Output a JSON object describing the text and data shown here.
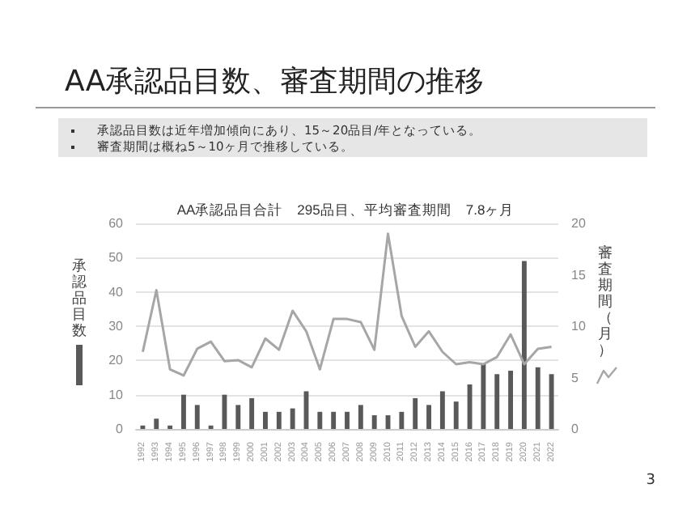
{
  "chart_data": {
    "type": "bar",
    "title": "AA承認品目数、審査期間の推移",
    "subtitle": "AA承認品目合計　295品目、平均審査期間　7.8ヶ月",
    "annotations": [
      "承認品目数は近年増加傾向にあり、15～20品目/年となっている。",
      "審査期間は概ね5～10ヶ月で推移している。",
      "3"
    ],
    "categories": [
      "1992",
      "1993",
      "1994",
      "1995",
      "1996",
      "1997",
      "1998",
      "1999",
      "2000",
      "2001",
      "2002",
      "2003",
      "2004",
      "2005",
      "2006",
      "2007",
      "2008",
      "2009",
      "2010",
      "2011",
      "2012",
      "2013",
      "2014",
      "2015",
      "2016",
      "2017",
      "2018",
      "2019",
      "2020",
      "2021",
      "2022"
    ],
    "series": [
      {
        "color": "#595959",
        "values": [
          1,
          3,
          1,
          10,
          7,
          1,
          10,
          7,
          9,
          5,
          5,
          6,
          11,
          5,
          5,
          5,
          7,
          4,
          4,
          5,
          9,
          7,
          11,
          8,
          13,
          19,
          16,
          17,
          49,
          18,
          16
        ]
      },
      {
        "type": "line",
        "axis": "y2",
        "color": "#a6a6a6",
        "values": [
          7.5,
          13.5,
          5.8,
          5.2,
          7.8,
          8.5,
          6.6,
          6.7,
          6.0,
          8.8,
          7.7,
          11.5,
          9.5,
          5.8,
          10.7,
          10.7,
          10.4,
          7.7,
          19,
          11,
          8,
          9.5,
          7.5,
          6.3,
          6.5,
          6.3,
          7,
          9.2,
          6.3,
          7.8,
          8
        ]
      }
    ],
    "ylabel": "承認品目数",
    "y2label": "審査期間（月）",
    "ylim": [
      0,
      60
    ],
    "yticks": [
      0,
      10,
      20,
      30,
      40,
      50,
      60
    ],
    "y2lim": [
      0,
      20
    ],
    "y2ticks": [
      0,
      5,
      10,
      15,
      20
    ],
    "grid": "y",
    "marker": "none",
    "line_style": "solid"
  }
}
